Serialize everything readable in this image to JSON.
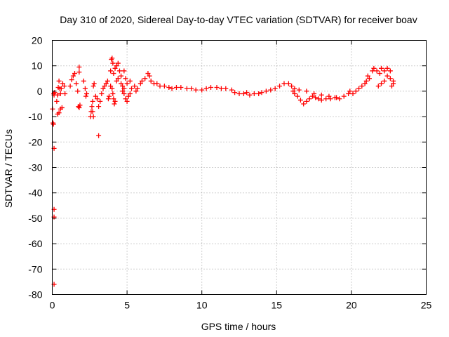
{
  "chart_data": {
    "type": "scatter",
    "title": "Day 310 of 2020, Sidereal Day-to-day VTEC variation (SDTVAR) for receiver boav",
    "xlabel": "GPS time / hours",
    "ylabel": "SDTVAR / TECUs",
    "xlim": [
      0,
      25
    ],
    "ylim": [
      -80,
      20
    ],
    "x_ticks": [
      0,
      5,
      10,
      15,
      20,
      25
    ],
    "y_ticks": [
      -80,
      -70,
      -60,
      -50,
      -40,
      -30,
      -20,
      -10,
      0,
      10,
      20
    ],
    "grid": true,
    "marker": "plus",
    "color": "#ff0000",
    "series": [
      {
        "name": "SDTVAR",
        "points": [
          [
            0.02,
            -7
          ],
          [
            0.05,
            -12.5
          ],
          [
            0.08,
            -13
          ],
          [
            0.1,
            -1
          ],
          [
            0.12,
            -1.5
          ],
          [
            0.15,
            -0.5
          ],
          [
            0.12,
            -22.5
          ],
          [
            0.12,
            -46.5
          ],
          [
            0.12,
            -49.5
          ],
          [
            0.12,
            -76
          ],
          [
            0.3,
            -4
          ],
          [
            0.35,
            -1.5
          ],
          [
            0.4,
            1.5
          ],
          [
            0.45,
            4
          ],
          [
            0.5,
            1
          ],
          [
            0.55,
            -1
          ],
          [
            0.6,
            1
          ],
          [
            0.7,
            3
          ],
          [
            0.8,
            2
          ],
          [
            0.85,
            -1
          ],
          [
            0.35,
            -9
          ],
          [
            0.45,
            -8.5
          ],
          [
            0.55,
            -7
          ],
          [
            0.65,
            -6.5
          ],
          [
            1.2,
            2
          ],
          [
            1.3,
            4.5
          ],
          [
            1.4,
            6
          ],
          [
            1.5,
            7
          ],
          [
            1.6,
            3
          ],
          [
            1.7,
            0
          ],
          [
            1.75,
            -6
          ],
          [
            1.8,
            -6.5
          ],
          [
            1.85,
            -5.5
          ],
          [
            1.8,
            9.5
          ],
          [
            1.8,
            7.5
          ],
          [
            2.1,
            4
          ],
          [
            2.2,
            1
          ],
          [
            2.25,
            -2
          ],
          [
            2.3,
            -1
          ],
          [
            2.55,
            -10
          ],
          [
            2.6,
            -8
          ],
          [
            2.65,
            -6
          ],
          [
            2.7,
            -8
          ],
          [
            2.75,
            -10
          ],
          [
            2.7,
            -4
          ],
          [
            2.75,
            2
          ],
          [
            2.8,
            3
          ],
          [
            2.9,
            -2
          ],
          [
            3.0,
            -3
          ],
          [
            3.1,
            -6
          ],
          [
            3.2,
            -4
          ],
          [
            3.3,
            -1
          ],
          [
            3.4,
            1
          ],
          [
            3.1,
            -17.5
          ],
          [
            3.5,
            2
          ],
          [
            3.6,
            3
          ],
          [
            3.7,
            4
          ],
          [
            3.75,
            -3
          ],
          [
            3.8,
            -2
          ],
          [
            3.9,
            8
          ],
          [
            3.95,
            12.5
          ],
          [
            4.0,
            13
          ],
          [
            4.05,
            11
          ],
          [
            4.1,
            7
          ],
          [
            4.2,
            9
          ],
          [
            4.3,
            10
          ],
          [
            4.4,
            11
          ],
          [
            4.5,
            8
          ],
          [
            4.6,
            6
          ],
          [
            4.7,
            2
          ],
          [
            4.8,
            1
          ],
          [
            3.9,
            2
          ],
          [
            4.0,
            1
          ],
          [
            4.05,
            -1
          ],
          [
            4.1,
            -3
          ],
          [
            4.15,
            -5
          ],
          [
            4.2,
            -4
          ],
          [
            4.3,
            4
          ],
          [
            4.4,
            5
          ],
          [
            4.6,
            3
          ],
          [
            4.7,
            0
          ],
          [
            4.8,
            -1
          ],
          [
            4.9,
            -3
          ],
          [
            5.0,
            -4
          ],
          [
            5.1,
            -2
          ],
          [
            5.2,
            -1
          ],
          [
            5.3,
            1
          ],
          [
            4.8,
            8
          ],
          [
            4.9,
            5
          ],
          [
            5.0,
            3
          ],
          [
            5.2,
            4
          ],
          [
            5.5,
            2
          ],
          [
            5.6,
            0
          ],
          [
            5.7,
            1
          ],
          [
            5.9,
            3
          ],
          [
            6.0,
            4
          ],
          [
            6.2,
            5
          ],
          [
            6.4,
            7
          ],
          [
            6.5,
            6
          ],
          [
            6.6,
            4
          ],
          [
            6.8,
            3
          ],
          [
            7.0,
            3
          ],
          [
            7.2,
            2
          ],
          [
            7.5,
            2
          ],
          [
            7.8,
            1.5
          ],
          [
            8.0,
            1
          ],
          [
            8.3,
            1.5
          ],
          [
            8.6,
            1.5
          ],
          [
            9.0,
            1
          ],
          [
            9.3,
            1
          ],
          [
            9.6,
            0.5
          ],
          [
            10.0,
            0.5
          ],
          [
            10.3,
            1
          ],
          [
            10.6,
            1.5
          ],
          [
            11.0,
            1.5
          ],
          [
            11.3,
            1
          ],
          [
            11.6,
            1
          ],
          [
            12.0,
            0.5
          ],
          [
            12.2,
            -0.5
          ],
          [
            12.5,
            -1
          ],
          [
            12.8,
            -1
          ],
          [
            13.0,
            -0.5
          ],
          [
            13.2,
            -1.5
          ],
          [
            13.5,
            -1
          ],
          [
            13.8,
            -1
          ],
          [
            14.0,
            -0.5
          ],
          [
            14.3,
            0
          ],
          [
            14.6,
            0.5
          ],
          [
            14.9,
            1
          ],
          [
            15.2,
            2
          ],
          [
            15.5,
            3
          ],
          [
            15.8,
            3
          ],
          [
            16.0,
            2
          ],
          [
            16.1,
            0
          ],
          [
            16.2,
            -1
          ],
          [
            16.4,
            -2
          ],
          [
            16.6,
            -3.5
          ],
          [
            16.8,
            -5
          ],
          [
            17.0,
            -4
          ],
          [
            17.2,
            -3
          ],
          [
            17.4,
            -2
          ],
          [
            17.6,
            -2.5
          ],
          [
            17.8,
            -3
          ],
          [
            18.0,
            -3.5
          ],
          [
            18.3,
            -3
          ],
          [
            18.6,
            -3
          ],
          [
            18.9,
            -2.5
          ],
          [
            19.2,
            -3
          ],
          [
            19.5,
            -2
          ],
          [
            19.8,
            -1
          ],
          [
            16.2,
            1
          ],
          [
            16.5,
            0.5
          ],
          [
            17.0,
            0
          ],
          [
            17.5,
            -1
          ],
          [
            18.0,
            -1.5
          ],
          [
            18.5,
            -2
          ],
          [
            19.0,
            -2.5
          ],
          [
            19.9,
            0
          ],
          [
            20.1,
            -1
          ],
          [
            20.3,
            0
          ],
          [
            20.5,
            1
          ],
          [
            20.7,
            2
          ],
          [
            20.9,
            3
          ],
          [
            21.0,
            4
          ],
          [
            21.1,
            6
          ],
          [
            21.2,
            5
          ],
          [
            21.4,
            8
          ],
          [
            21.5,
            9
          ],
          [
            21.7,
            8
          ],
          [
            21.9,
            7
          ],
          [
            22.0,
            9
          ],
          [
            22.2,
            8
          ],
          [
            22.4,
            9
          ],
          [
            22.6,
            8
          ],
          [
            22.8,
            4
          ],
          [
            21.8,
            2
          ],
          [
            22.0,
            3
          ],
          [
            22.2,
            4
          ],
          [
            22.4,
            6
          ],
          [
            22.6,
            5
          ],
          [
            22.8,
            3
          ],
          [
            22.7,
            2
          ]
        ]
      }
    ]
  }
}
